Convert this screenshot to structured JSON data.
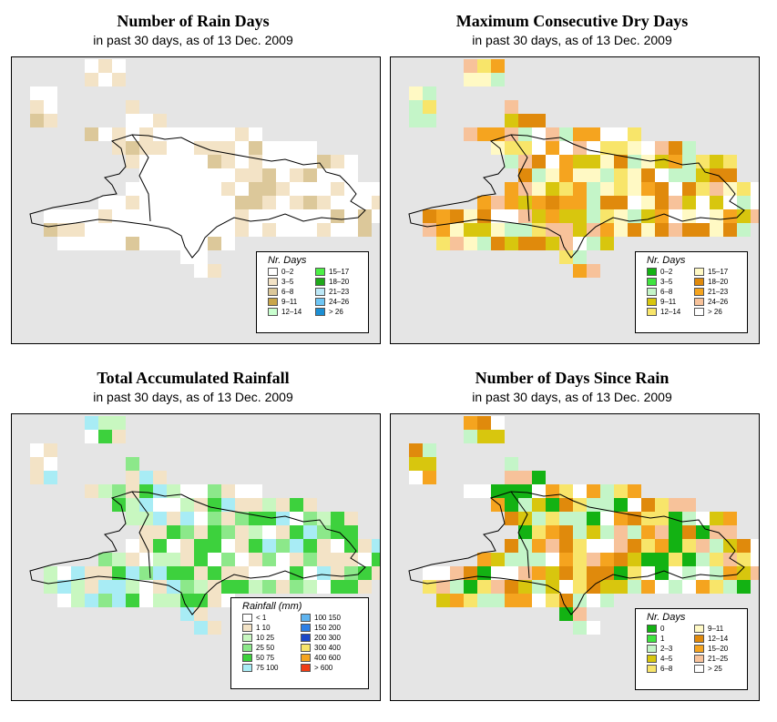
{
  "panels": [
    {
      "title": "Number of Rain Days",
      "subtitle": "in past 30 days, as of  13 Dec. 2009",
      "legend": {
        "title": "Nr. Days",
        "columns": [
          [
            {
              "label": "0–2",
              "color": "#ffffff"
            },
            {
              "label": "3–5",
              "color": "#f3e3c6"
            },
            {
              "label": "6–8",
              "color": "#dcc89a"
            },
            {
              "label": "9–11",
              "color": "#c9a64a"
            },
            {
              "label": "12–14",
              "color": "#c9ffcf"
            }
          ],
          [
            {
              "label": "15–17",
              "color": "#4cf046"
            },
            {
              "label": "18–20",
              "color": "#1fa81a"
            },
            {
              "label": "21–23",
              "color": "#bde8f7"
            },
            {
              "label": "24–26",
              "color": "#6ec6f5"
            },
            {
              "label": "> 26",
              "color": "#1b8fd4"
            }
          ]
        ]
      }
    },
    {
      "title": "Maximum Consecutive Dry Days",
      "subtitle": "in past 30 days, as of  13 Dec. 2009",
      "legend": {
        "title": "Nr. Days",
        "columns": [
          [
            {
              "label": "0–2",
              "color": "#13b213"
            },
            {
              "label": "3–5",
              "color": "#3fe43f"
            },
            {
              "label": "6–8",
              "color": "#c4f5c8"
            },
            {
              "label": "9–11",
              "color": "#d8c60e"
            },
            {
              "label": "12–14",
              "color": "#f8e56a"
            }
          ],
          [
            {
              "label": "15–17",
              "color": "#fff9c4"
            },
            {
              "label": "18–20",
              "color": "#e08a0c"
            },
            {
              "label": "21–23",
              "color": "#f5a41f"
            },
            {
              "label": "24–26",
              "color": "#f7c29a"
            },
            {
              "label": "> 26",
              "color": "#ffffff"
            }
          ]
        ]
      }
    },
    {
      "title": "Total Accumulated Rainfall",
      "subtitle": "in past 30 days, as of  13 Dec. 2009",
      "legend": {
        "title": "Rainfall (mm)",
        "columns": [
          [
            {
              "label": "     < 1",
              "color": "#ffffff"
            },
            {
              "label": "1     10",
              "color": "#f3e3c6"
            },
            {
              "label": "10     25",
              "color": "#c8f7c0"
            },
            {
              "label": "25     50",
              "color": "#8ce88a"
            },
            {
              "label": "50     75",
              "color": "#3dd13d"
            },
            {
              "label": "75   100",
              "color": "#a8ecf5"
            }
          ],
          [
            {
              "label": "100  150",
              "color": "#5fb4f0"
            },
            {
              "label": "150  200",
              "color": "#2c7fe6"
            },
            {
              "label": "200  300",
              "color": "#1a48c8"
            },
            {
              "label": "300  400",
              "color": "#f8e56a"
            },
            {
              "label": "400  600",
              "color": "#f5a41f"
            },
            {
              "label": "> 600",
              "color": "#f03c14"
            }
          ]
        ]
      }
    },
    {
      "title": "Number of Days Since Rain",
      "subtitle": "in past 30 days, as of  13 Dec. 2009",
      "legend": {
        "title": "Nr. Days",
        "columns": [
          [
            {
              "label": "0",
              "color": "#13b213"
            },
            {
              "label": "1",
              "color": "#3fe43f"
            },
            {
              "label": "2–3",
              "color": "#c4f5c8"
            },
            {
              "label": "4–5",
              "color": "#d8c60e"
            },
            {
              "label": "6–8",
              "color": "#f8e56a"
            }
          ],
          [
            {
              "label": "9–11",
              "color": "#fff9c4"
            },
            {
              "label": "12–14",
              "color": "#e08a0c"
            },
            {
              "label": "15–20",
              "color": "#f5a41f"
            },
            {
              "label": "21–25",
              "color": "#f7c29a"
            },
            {
              "label": "> 25",
              "color": "#ffffff"
            }
          ]
        ]
      }
    }
  ]
}
